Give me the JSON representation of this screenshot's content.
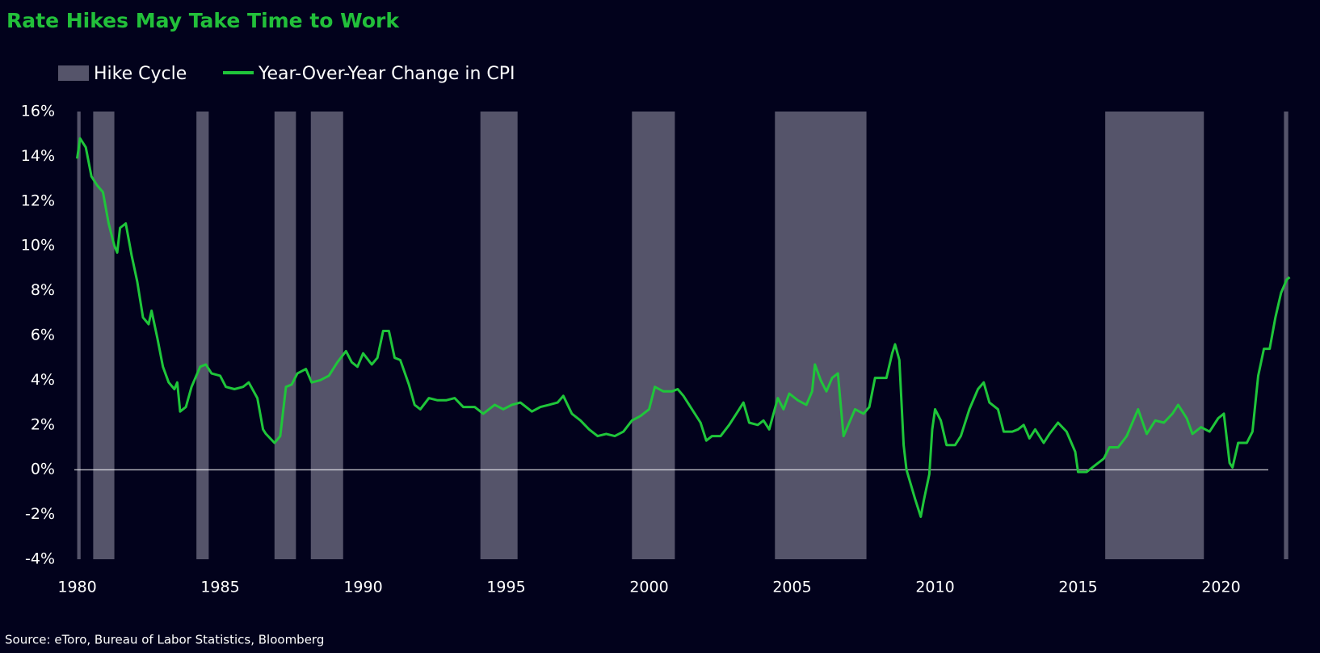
{
  "chart_data": {
    "type": "line",
    "title": "Rate Hikes May Take Time to Work",
    "source": "Source: eToro, Bureau of Labor Statistics, Bloomberg",
    "xlim": [
      1979.9,
      2022.5
    ],
    "xticks": [
      1980,
      1985,
      1990,
      1995,
      2000,
      2005,
      2010,
      2015,
      2020
    ],
    "ylim": [
      -4,
      16
    ],
    "yticks": [
      {
        "value": -4,
        "label": "-4%"
      },
      {
        "value": -2,
        "label": "-2%"
      },
      {
        "value": 0,
        "label": "0%"
      },
      {
        "value": 2,
        "label": "2%"
      },
      {
        "value": 4,
        "label": "4%"
      },
      {
        "value": 6,
        "label": "6%"
      },
      {
        "value": 8,
        "label": "8%"
      },
      {
        "value": 10,
        "label": "10%"
      },
      {
        "value": 12,
        "label": "12%"
      },
      {
        "value": 14,
        "label": "14%"
      },
      {
        "value": 16,
        "label": "16%"
      }
    ],
    "zero_line": true,
    "hike_cycles": {
      "name": "Hike Cycle",
      "color": "#55546a",
      "ranges": [
        [
          1980.0,
          1980.12
        ],
        [
          1980.56,
          1981.3
        ],
        [
          1984.17,
          1984.6
        ],
        [
          1986.9,
          1987.65
        ],
        [
          1988.17,
          1989.3
        ],
        [
          1994.1,
          1995.4
        ],
        [
          1999.4,
          2000.9
        ],
        [
          2004.4,
          2007.6
        ],
        [
          2015.95,
          2019.4
        ],
        [
          2022.2,
          2022.35
        ]
      ]
    },
    "x": [
      1980.0,
      1980.1,
      1980.3,
      1980.5,
      1980.7,
      1980.9,
      1981.1,
      1981.3,
      1981.4,
      1981.5,
      1981.7,
      1981.9,
      1982.1,
      1982.3,
      1982.5,
      1982.6,
      1982.8,
      1983.0,
      1983.2,
      1983.4,
      1983.5,
      1983.6,
      1983.8,
      1984.0,
      1984.3,
      1984.5,
      1984.7,
      1985.0,
      1985.2,
      1985.5,
      1985.8,
      1986.0,
      1986.3,
      1986.5,
      1986.6,
      1986.9,
      1987.1,
      1987.3,
      1987.5,
      1987.7,
      1988.0,
      1988.2,
      1988.5,
      1988.8,
      1989.1,
      1989.4,
      1989.6,
      1989.8,
      1990.0,
      1990.3,
      1990.5,
      1990.7,
      1990.9,
      1991.1,
      1991.3,
      1991.6,
      1991.8,
      1992.0,
      1992.3,
      1992.6,
      1992.9,
      1993.2,
      1993.5,
      1993.9,
      1994.2,
      1994.6,
      1994.9,
      1995.2,
      1995.5,
      1995.9,
      1996.2,
      1996.5,
      1996.8,
      1997.0,
      1997.3,
      1997.6,
      1997.9,
      1998.2,
      1998.5,
      1998.8,
      1999.1,
      1999.4,
      1999.7,
      2000.0,
      2000.2,
      2000.5,
      2000.8,
      2001.0,
      2001.2,
      2001.5,
      2001.8,
      2002.0,
      2002.2,
      2002.5,
      2002.8,
      2003.1,
      2003.3,
      2003.5,
      2003.8,
      2004.0,
      2004.2,
      2004.5,
      2004.7,
      2004.9,
      2005.2,
      2005.5,
      2005.7,
      2005.8,
      2006.0,
      2006.2,
      2006.4,
      2006.6,
      2006.8,
      2007.0,
      2007.2,
      2007.5,
      2007.7,
      2007.9,
      2008.1,
      2008.3,
      2008.5,
      2008.6,
      2008.75,
      2008.9,
      2009.0,
      2009.3,
      2009.5,
      2009.6,
      2009.8,
      2009.9,
      2010.0,
      2010.2,
      2010.4,
      2010.7,
      2010.9,
      2011.2,
      2011.5,
      2011.7,
      2011.9,
      2012.2,
      2012.4,
      2012.7,
      2012.9,
      2013.1,
      2013.3,
      2013.5,
      2013.8,
      2014.0,
      2014.3,
      2014.6,
      2014.9,
      2015.0,
      2015.3,
      2015.6,
      2015.9,
      2016.1,
      2016.4,
      2016.7,
      2016.9,
      2017.1,
      2017.4,
      2017.7,
      2018.0,
      2018.3,
      2018.5,
      2018.8,
      2019.0,
      2019.3,
      2019.6,
      2019.9,
      2020.1,
      2020.3,
      2020.4,
      2020.6,
      2020.9,
      2021.1,
      2021.3,
      2021.5,
      2021.7,
      2021.9,
      2022.1,
      2022.3,
      2022.4
    ],
    "series": [
      {
        "name": "Year-Over-Year Change in CPI",
        "color": "#1fc63a",
        "values": [
          13.9,
          14.8,
          14.4,
          13.1,
          12.7,
          12.4,
          11.0,
          10.0,
          9.7,
          10.8,
          11.0,
          9.6,
          8.4,
          6.8,
          6.5,
          7.1,
          5.9,
          4.6,
          3.9,
          3.6,
          3.9,
          2.6,
          2.8,
          3.7,
          4.6,
          4.7,
          4.3,
          4.2,
          3.7,
          3.6,
          3.7,
          3.9,
          3.2,
          1.8,
          1.6,
          1.2,
          1.5,
          3.7,
          3.8,
          4.3,
          4.5,
          3.9,
          4.0,
          4.2,
          4.8,
          5.3,
          4.8,
          4.6,
          5.2,
          4.7,
          5.0,
          6.2,
          6.2,
          5.0,
          4.9,
          3.8,
          2.9,
          2.7,
          3.2,
          3.1,
          3.1,
          3.2,
          2.8,
          2.8,
          2.5,
          2.9,
          2.7,
          2.9,
          3.0,
          2.6,
          2.8,
          2.9,
          3.0,
          3.3,
          2.5,
          2.2,
          1.8,
          1.5,
          1.6,
          1.5,
          1.7,
          2.2,
          2.4,
          2.7,
          3.7,
          3.5,
          3.5,
          3.6,
          3.3,
          2.7,
          2.1,
          1.3,
          1.5,
          1.5,
          2.0,
          2.6,
          3.0,
          2.1,
          2.0,
          2.2,
          1.8,
          3.2,
          2.7,
          3.4,
          3.1,
          2.9,
          3.5,
          4.7,
          4.0,
          3.5,
          4.1,
          4.3,
          1.5,
          2.1,
          2.7,
          2.5,
          2.8,
          4.1,
          4.1,
          4.1,
          5.2,
          5.6,
          4.9,
          1.1,
          0.0,
          -1.3,
          -2.1,
          -1.4,
          -0.2,
          1.8,
          2.7,
          2.2,
          1.1,
          1.1,
          1.5,
          2.7,
          3.6,
          3.9,
          3.0,
          2.7,
          1.7,
          1.7,
          1.8,
          2.0,
          1.4,
          1.8,
          1.2,
          1.6,
          2.1,
          1.7,
          0.8,
          -0.1,
          -0.1,
          0.2,
          0.5,
          1.0,
          1.0,
          1.5,
          2.1,
          2.7,
          1.6,
          2.2,
          2.1,
          2.5,
          2.9,
          2.3,
          1.6,
          1.9,
          1.7,
          2.3,
          2.5,
          0.3,
          0.1,
          1.2,
          1.2,
          1.7,
          4.2,
          5.4,
          5.4,
          6.8,
          7.9,
          8.5,
          8.6
        ]
      }
    ]
  }
}
